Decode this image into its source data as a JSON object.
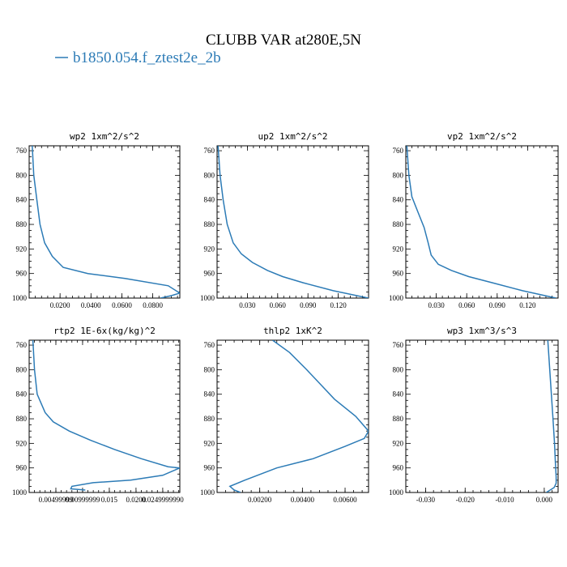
{
  "title": "CLUBB VAR at280E,5N",
  "legend": {
    "label": "b1850.054.f_ztest2e_2b",
    "color": "#2c7bb6"
  },
  "chart_data": [
    {
      "type": "line",
      "title": "wp2  1xm^2/s^2",
      "xlim": [
        0.0,
        0.0975
      ],
      "ylim": [
        1000,
        752
      ],
      "y_ticks": [
        760,
        800,
        840,
        880,
        920,
        960,
        1000
      ],
      "x_ticks": [
        0.02,
        0.04,
        0.06,
        0.08
      ],
      "x_tick_labels": [
        "0.0200",
        "0.0400",
        "0.0600",
        "0.0800"
      ],
      "series": [
        {
          "x": [
            0.002,
            0.003,
            0.005,
            0.007,
            0.01,
            0.015,
            0.022,
            0.038,
            0.062,
            0.09,
            0.0975,
            0.092,
            0.085
          ],
          "y": [
            752,
            800,
            840,
            880,
            910,
            932,
            950,
            960,
            968,
            980,
            992,
            996,
            1000
          ]
        }
      ]
    },
    {
      "type": "line",
      "title": "up2  1xm^2/s^2",
      "xlim": [
        0.0,
        0.15
      ],
      "ylim": [
        1000,
        752
      ],
      "y_ticks": [
        760,
        800,
        840,
        880,
        920,
        960,
        1000
      ],
      "x_ticks": [
        0.03,
        0.06,
        0.09,
        0.12
      ],
      "x_tick_labels": [
        "0.030",
        "0.060",
        "0.090",
        "0.120"
      ],
      "series": [
        {
          "x": [
            0.001,
            0.003,
            0.006,
            0.01,
            0.016,
            0.024,
            0.035,
            0.05,
            0.065,
            0.085,
            0.115,
            0.15
          ],
          "y": [
            752,
            800,
            840,
            880,
            910,
            928,
            942,
            955,
            965,
            975,
            988,
            1000
          ]
        }
      ]
    },
    {
      "type": "line",
      "title": "vp2  1xm^2/s^2",
      "xlim": [
        0.0,
        0.15
      ],
      "ylim": [
        1000,
        752
      ],
      "y_ticks": [
        760,
        800,
        840,
        880,
        920,
        960,
        1000
      ],
      "x_ticks": [
        0.03,
        0.06,
        0.09,
        0.12
      ],
      "x_tick_labels": [
        "0.030",
        "0.060",
        "0.090",
        "0.120"
      ],
      "series": [
        {
          "x": [
            0.001,
            0.003,
            0.006,
            0.012,
            0.018,
            0.022,
            0.025,
            0.032,
            0.045,
            0.062,
            0.085,
            0.115,
            0.148
          ],
          "y": [
            752,
            800,
            835,
            860,
            885,
            910,
            930,
            945,
            955,
            965,
            975,
            988,
            1000
          ]
        }
      ]
    },
    {
      "type": "line",
      "title": "rtp2  1E-6x(kg/kg)^2",
      "xlim": [
        0.0,
        0.0282
      ],
      "ylim": [
        1000,
        752
      ],
      "y_ticks": [
        760,
        800,
        840,
        880,
        920,
        960,
        1000
      ],
      "x_ticks": [
        0.005,
        0.01,
        0.015,
        0.02,
        0.025
      ],
      "x_tick_labels": [
        "0.00499999",
        "0.00999999",
        "0.015",
        "0.0200",
        "0.0249999990"
      ],
      "series": [
        {
          "x": [
            0.0007,
            0.001,
            0.0015,
            0.003,
            0.0045,
            0.0075,
            0.0115,
            0.016,
            0.021,
            0.026,
            0.0282,
            0.025,
            0.019,
            0.012,
            0.008,
            0.0078,
            0.0105
          ],
          "y": [
            752,
            800,
            840,
            870,
            885,
            900,
            915,
            930,
            945,
            958,
            960,
            972,
            980,
            984,
            990,
            994,
            996
          ]
        }
      ]
    },
    {
      "type": "line",
      "title": "thlp2  1xK^2",
      "xlim": [
        0.0,
        0.0071
      ],
      "ylim": [
        1000,
        752
      ],
      "y_ticks": [
        760,
        800,
        840,
        880,
        920,
        960,
        1000
      ],
      "x_ticks": [
        0.002,
        0.004,
        0.006
      ],
      "x_tick_labels": [
        "0.00200",
        "0.00400",
        "0.00600"
      ],
      "series": [
        {
          "x": [
            0.0026,
            0.0034,
            0.0042,
            0.0048,
            0.0055,
            0.0065,
            0.0071,
            0.0069,
            0.006,
            0.0045,
            0.0028,
            0.0013,
            0.0006,
            0.0008,
            0.0011
          ],
          "y": [
            752,
            772,
            800,
            822,
            848,
            876,
            900,
            912,
            925,
            945,
            960,
            980,
            990,
            996,
            1000
          ]
        }
      ]
    },
    {
      "type": "line",
      "title": "wp3  1xm^3/s^3",
      "xlim": [
        -0.035,
        0.0035
      ],
      "ylim": [
        1000,
        752
      ],
      "y_ticks": [
        760,
        800,
        840,
        880,
        920,
        960,
        1000
      ],
      "x_ticks": [
        -0.03,
        -0.02,
        -0.01,
        0.0
      ],
      "x_tick_labels": [
        "-0.030",
        "-0.020",
        "-0.010",
        "0.000"
      ],
      "series": [
        {
          "x": [
            0.0009,
            0.0014,
            0.0018,
            0.0022,
            0.0026,
            0.0028,
            0.003,
            0.003,
            0.0025,
            0.0015,
            0.0005
          ],
          "y": [
            752,
            800,
            840,
            880,
            920,
            950,
            975,
            985,
            992,
            996,
            1000
          ]
        }
      ]
    }
  ]
}
